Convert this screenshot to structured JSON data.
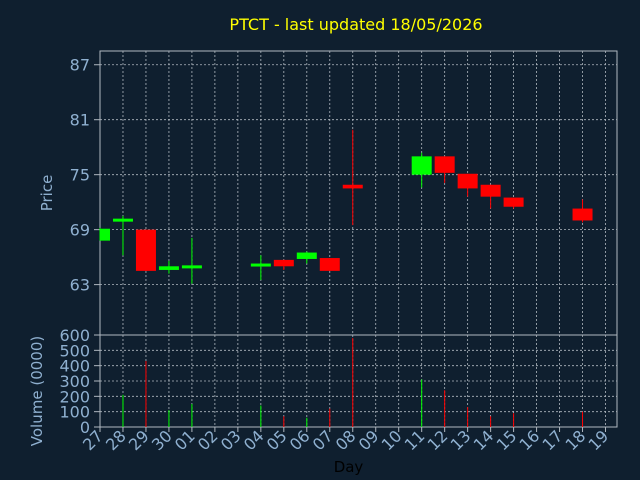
{
  "chart_data": {
    "type": "candlestick",
    "title": "PTCT - last updated 18/05/2026",
    "xlabel": "Day",
    "price_panel": {
      "ylabel": "Price",
      "ylim": [
        57.5,
        88.5
      ],
      "yticks": [
        63,
        69,
        75,
        81,
        87
      ],
      "grid": true
    },
    "volume_panel": {
      "ylabel": "Volume (0000)",
      "ylim": [
        0,
        600
      ],
      "yticks": [
        0,
        100,
        200,
        300,
        400,
        500,
        600
      ],
      "grid": true
    },
    "x_tick_labels": [
      "27",
      "28",
      "29",
      "30",
      "01",
      "02",
      "03",
      "04",
      "05",
      "06",
      "07",
      "08",
      "09",
      "10",
      "11",
      "12",
      "13",
      "14",
      "15",
      "16",
      "17",
      "18",
      "19"
    ],
    "candles": [
      {
        "day": "27",
        "open": 67.8,
        "high": 69.2,
        "low": 67.8,
        "close": 69.1,
        "volume": 0
      },
      {
        "day": "28",
        "open": 70.0,
        "high": 70.5,
        "low": 66.2,
        "close": 70.2,
        "volume": 210
      },
      {
        "day": "29",
        "open": 69.0,
        "high": 69.0,
        "low": 64.5,
        "close": 64.5,
        "volume": 430
      },
      {
        "day": "30",
        "open": 64.6,
        "high": 65.6,
        "low": 64.2,
        "close": 65.0,
        "volume": 110
      },
      {
        "day": "01",
        "open": 64.9,
        "high": 68.1,
        "low": 63.1,
        "close": 65.1,
        "volume": 150
      },
      {
        "day": "04",
        "open": 65.0,
        "high": 66.2,
        "low": 63.5,
        "close": 65.3,
        "volume": 140
      },
      {
        "day": "05",
        "open": 65.7,
        "high": 65.7,
        "low": 64.6,
        "close": 65.0,
        "volume": 70
      },
      {
        "day": "06",
        "open": 65.8,
        "high": 66.6,
        "low": 65.3,
        "close": 66.5,
        "volume": 60
      },
      {
        "day": "07",
        "open": 65.9,
        "high": 65.9,
        "low": 64.5,
        "close": 64.5,
        "volume": 120
      },
      {
        "day": "08",
        "open": 73.9,
        "high": 79.9,
        "low": 69.5,
        "close": 73.5,
        "volume": 580
      },
      {
        "day": "11",
        "open": 75.0,
        "high": 77.4,
        "low": 73.6,
        "close": 77.0,
        "volume": 310
      },
      {
        "day": "12",
        "open": 77.0,
        "high": 77.0,
        "low": 74.1,
        "close": 75.2,
        "volume": 240
      },
      {
        "day": "13",
        "open": 75.1,
        "high": 75.1,
        "low": 72.6,
        "close": 73.5,
        "volume": 130
      },
      {
        "day": "14",
        "open": 73.9,
        "high": 73.9,
        "low": 71.3,
        "close": 72.6,
        "volume": 70
      },
      {
        "day": "15",
        "open": 72.5,
        "high": 72.5,
        "low": 71.3,
        "close": 71.5,
        "volume": 90
      },
      {
        "day": "18",
        "open": 71.3,
        "high": 72.3,
        "low": 69.8,
        "close": 70.0,
        "volume": 100
      }
    ],
    "colors": {
      "up": "#00ff00",
      "down": "#ff0000",
      "background": "#0f1f2f",
      "grid": "#b0b8c0",
      "axis_text": "#8fb0d0",
      "title": "#ffff00"
    }
  }
}
